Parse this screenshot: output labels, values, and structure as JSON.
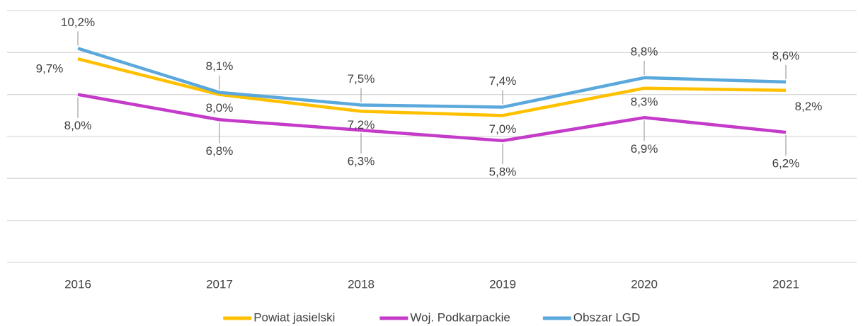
{
  "chart_data": {
    "type": "line",
    "categories": [
      "2016",
      "2017",
      "2018",
      "2019",
      "2020",
      "2021"
    ],
    "series": [
      {
        "name": "Powiat jasielski",
        "color": "#ffc000",
        "values": [
          9.7,
          8.0,
          7.2,
          7.0,
          8.3,
          8.2
        ],
        "value_labels": [
          "9,7%",
          "8,0%",
          "7,2%",
          "7,0%",
          "8,3%",
          "8,2%"
        ]
      },
      {
        "name": "Woj. Podkarpackie",
        "color": "#c43bc9",
        "values": [
          8.0,
          6.8,
          6.3,
          5.8,
          6.9,
          6.2
        ],
        "value_labels": [
          "8,0%",
          "6,8%",
          "6,3%",
          "5,8%",
          "6,9%",
          "6,2%"
        ]
      },
      {
        "name": "Obszar LGD",
        "color": "#5ba8dc",
        "values": [
          10.2,
          8.1,
          7.5,
          7.4,
          8.8,
          8.6
        ],
        "value_labels": [
          "10,2%",
          "8,1%",
          "7,5%",
          "7,4%",
          "8,8%",
          "8,6%"
        ]
      }
    ],
    "ylim": [
      0,
      12
    ],
    "yticks": [
      0,
      2,
      4,
      6,
      8,
      10,
      12
    ],
    "grid": true,
    "legend": "bottom"
  }
}
